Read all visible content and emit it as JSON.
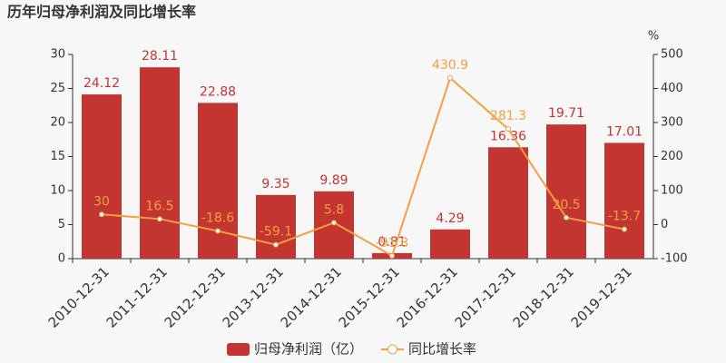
{
  "chart_data": {
    "type": "bar",
    "title": "历年归母净利润及同比增长率",
    "y2_label": "%",
    "categories": [
      "2010-12-31",
      "2011-12-31",
      "2012-12-31",
      "2013-12-31",
      "2014-12-31",
      "2015-12-31",
      "2016-12-31",
      "2017-12-31",
      "2018-12-31",
      "2019-12-31"
    ],
    "series": [
      {
        "name": "归母净利润（亿）",
        "type": "bar",
        "color": "#c23531",
        "values": [
          24.12,
          28.11,
          22.88,
          9.35,
          9.89,
          0.81,
          4.29,
          16.36,
          19.71,
          17.01
        ]
      },
      {
        "name": "同比增长率",
        "type": "line",
        "axis": "y2",
        "color": "#f49f42",
        "values": [
          30,
          16.5,
          -18.6,
          -59.1,
          5.8,
          -91.8,
          430.9,
          281.3,
          20.5,
          -13.7
        ]
      }
    ],
    "ylim": [
      0,
      30
    ],
    "yticks": [
      0,
      5,
      10,
      15,
      20,
      25,
      30
    ],
    "y2lim": [
      -100,
      500
    ],
    "y2ticks": [
      -100,
      0,
      100,
      200,
      300,
      400,
      500
    ],
    "legend": "bottom"
  }
}
